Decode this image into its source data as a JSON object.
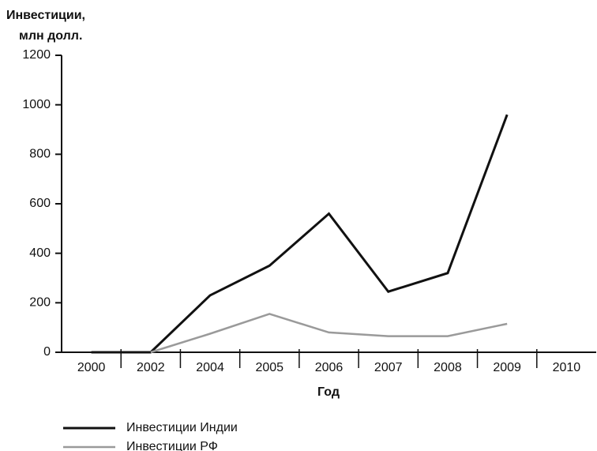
{
  "chart_data": {
    "type": "line",
    "ylabel": [
      "Инвестиции,",
      "млн долл."
    ],
    "xlabel": "Год",
    "categories": [
      "2000",
      "2002",
      "2004",
      "2005",
      "2006",
      "2007",
      "2008",
      "2009",
      "2010"
    ],
    "series": [
      {
        "name": "Инвестиции Индии",
        "color": "#111111",
        "values": [
          0,
          0,
          230,
          350,
          560,
          245,
          320,
          960,
          null
        ]
      },
      {
        "name": "Инвестиции РФ",
        "color": "#9a9a9a",
        "values": [
          null,
          0,
          75,
          155,
          80,
          65,
          65,
          115,
          null
        ]
      }
    ],
    "ylim": [
      0,
      1200
    ],
    "yticks": [
      0,
      200,
      400,
      600,
      800,
      1000,
      1200
    ],
    "grid": false,
    "legend": "bottom-left"
  }
}
